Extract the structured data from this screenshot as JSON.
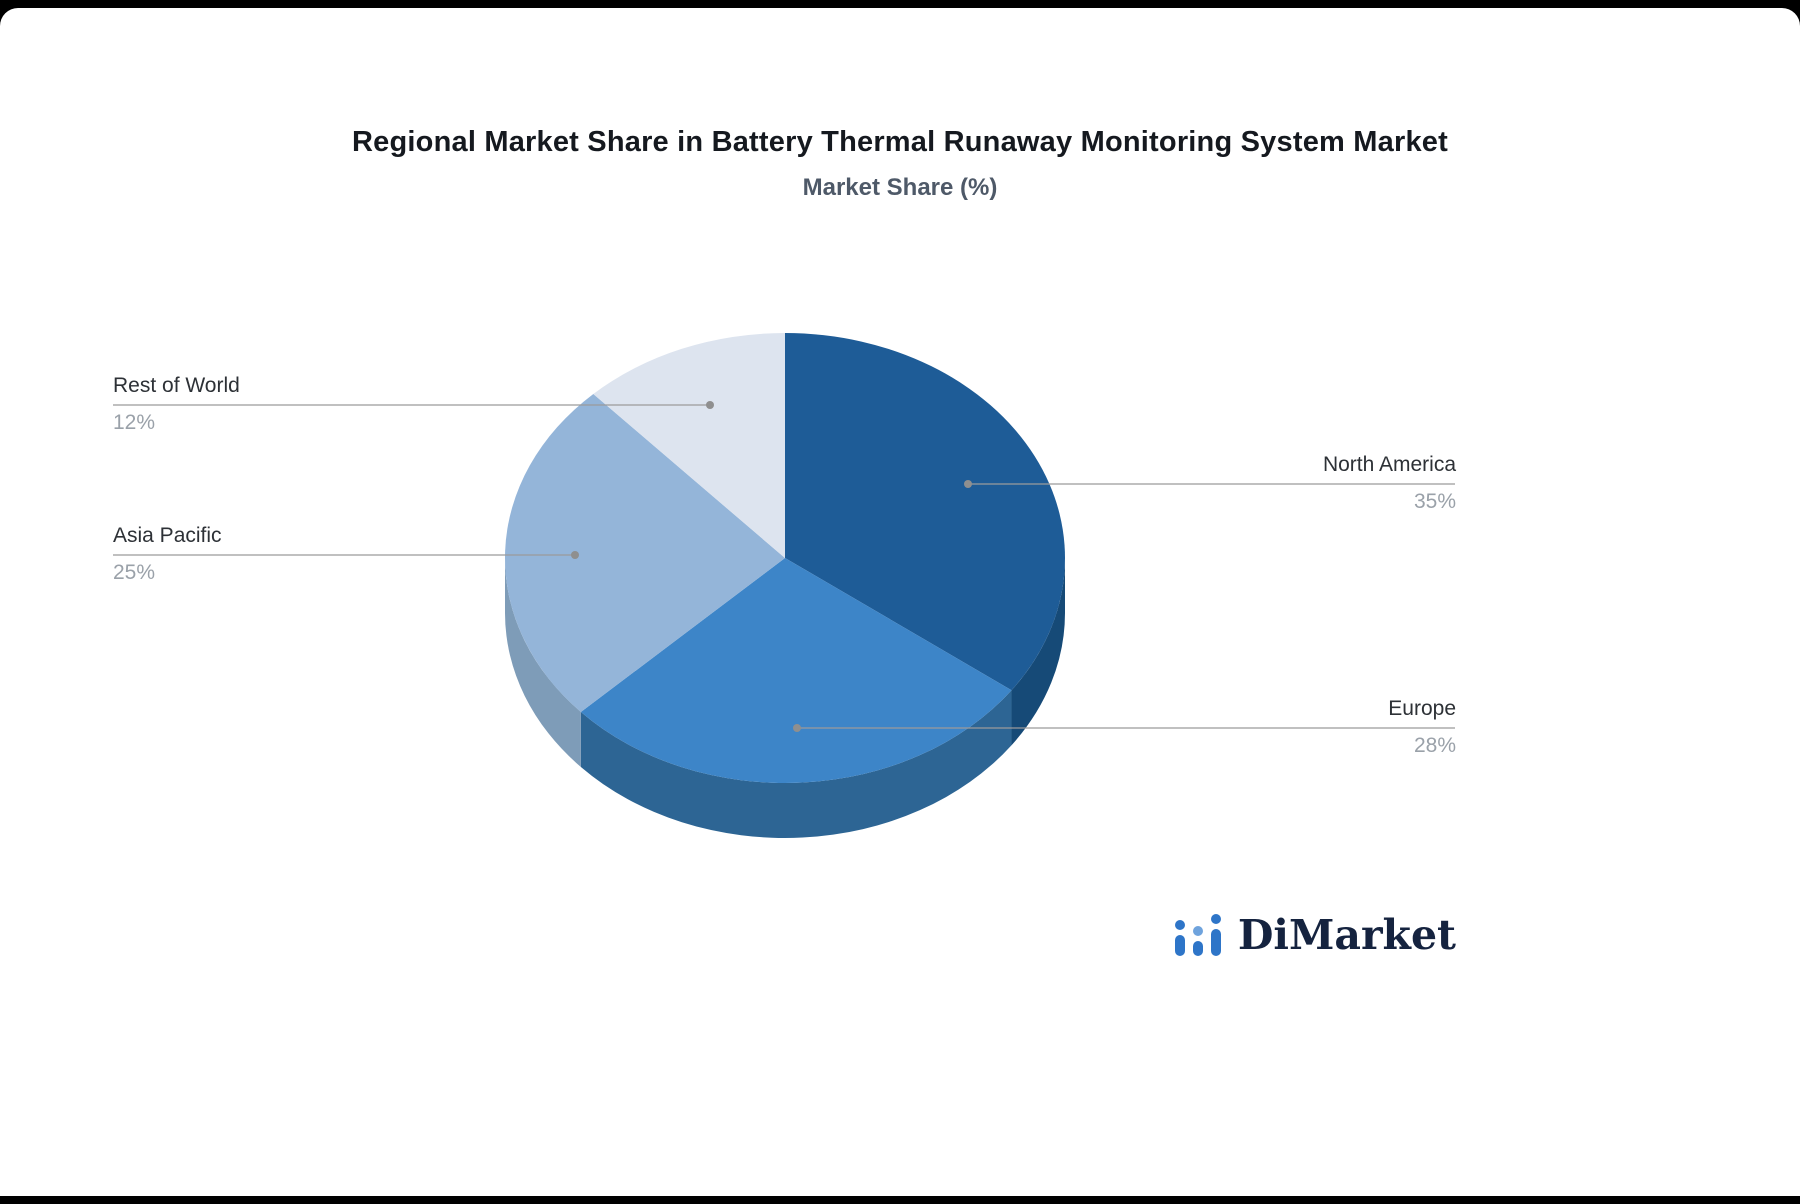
{
  "header": {
    "title": "Regional Market Share in Battery Thermal Runaway Monitoring System Market",
    "subtitle": "Market Share (%)"
  },
  "chart_data": {
    "type": "pie",
    "title": "Regional Market Share in Battery Thermal Runaway Monitoring System Market",
    "subtitle": "Market Share (%)",
    "unit": "%",
    "effect": "3d",
    "direction": "clockwise",
    "start_angle_deg": 0,
    "legend_position": "none",
    "label_style": "callout",
    "labels": [
      "North America",
      "Europe",
      "Asia Pacific",
      "Rest of World"
    ],
    "values": [
      35,
      28,
      25,
      12
    ],
    "value_labels": [
      "35%",
      "28%",
      "25%",
      "12%"
    ],
    "colors": [
      "#1e5c97",
      "#3d85c8",
      "#94b5d9",
      "#dde4ef"
    ],
    "depth_colors": [
      "#164a77",
      "#2d6594",
      "#7e9cb8",
      "#b3bdca"
    ]
  },
  "branding": {
    "logo_text": "DiMarket",
    "logo_icon": "bar-chart-icon",
    "text_color": "#15233f",
    "icon_color": "#2e75c8"
  }
}
